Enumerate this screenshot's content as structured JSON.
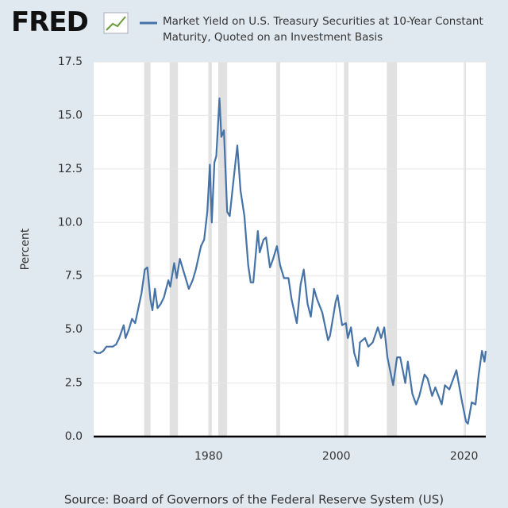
{
  "logo": "FRED",
  "chart_data": {
    "type": "line",
    "y_label": "Percent",
    "source": "Source: Board of Governors of the Federal Reserve System (US)",
    "xlim": [
      1962,
      2023.4
    ],
    "xticks": [
      1980,
      2000,
      2020
    ],
    "ylim": [
      0,
      17.5
    ],
    "yticks": [
      {
        "value": 0,
        "label": "0.0"
      },
      2.5,
      {
        "value": 5,
        "label": "5.0"
      },
      7.5,
      {
        "value": 10,
        "label": "10.0"
      },
      12.5,
      {
        "value": 15,
        "label": "15.0"
      },
      17.5
    ],
    "grid": true,
    "shaded_periods": [
      [
        1969.9,
        1970.9
      ],
      [
        1973.9,
        1975.2
      ],
      [
        1980.0,
        1980.5
      ],
      [
        1981.5,
        1982.9
      ],
      [
        1990.6,
        1991.2
      ],
      [
        2001.2,
        2001.9
      ],
      [
        2007.9,
        2009.5
      ],
      [
        2020.1,
        2020.3
      ]
    ],
    "x": [
      1962,
      1962.5,
      1963,
      1963.5,
      1964,
      1965,
      1965.5,
      1966,
      1966.7,
      1967,
      1967.5,
      1968,
      1968.5,
      1969,
      1969.5,
      1970,
      1970.4,
      1970.9,
      1971.2,
      1971.6,
      1972,
      1972.5,
      1973,
      1973.7,
      1974,
      1974.6,
      1975,
      1975.5,
      1976,
      1976.9,
      1977.5,
      1978,
      1978.8,
      1979.3,
      1979.8,
      1980.2,
      1980.5,
      1980.9,
      1981.2,
      1981.7,
      1982,
      1982.4,
      1982.9,
      1983.3,
      1983.8,
      1984.5,
      1985,
      1985.6,
      1986.2,
      1986.6,
      1987,
      1987.7,
      1988,
      1988.6,
      1989,
      1989.6,
      1990.1,
      1990.7,
      1991.2,
      1991.8,
      1992.5,
      1993,
      1993.8,
      1994.4,
      1994.9,
      1995.5,
      1996,
      1996.5,
      1997,
      1997.8,
      1998.7,
      1999,
      1999.9,
      2000.2,
      2000.9,
      2001.5,
      2001.8,
      2002.3,
      2002.8,
      2003.4,
      2003.7,
      2004.5,
      2005,
      2005.7,
      2006.5,
      2007,
      2007.5,
      2008,
      2008.9,
      2009.5,
      2010,
      2010.8,
      2011.2,
      2011.9,
      2012.5,
      2013,
      2013.8,
      2014.3,
      2015,
      2015.5,
      2016.5,
      2017,
      2017.7,
      2018.8,
      2019.7,
      2020.3,
      2020.6,
      2021.2,
      2021.8,
      2022.3,
      2022.8,
      2023.2,
      2023.4
    ],
    "series": [
      {
        "name": "Market Yield on U.S. Treasury Securities at 10-Year Constant Maturity, Quoted on an Investment Basis",
        "color": "#4572a7",
        "values": [
          4.0,
          3.9,
          3.9,
          4.0,
          4.2,
          4.2,
          4.3,
          4.6,
          5.2,
          4.6,
          5.0,
          5.5,
          5.3,
          6.0,
          6.7,
          7.8,
          7.9,
          6.4,
          5.9,
          6.9,
          6.0,
          6.2,
          6.5,
          7.3,
          7.0,
          8.1,
          7.4,
          8.3,
          7.8,
          6.9,
          7.3,
          7.8,
          8.9,
          9.2,
          10.5,
          12.7,
          10.0,
          12.8,
          13.1,
          15.8,
          14.0,
          14.3,
          10.5,
          10.3,
          11.7,
          13.6,
          11.5,
          10.3,
          8.0,
          7.2,
          7.2,
          9.6,
          8.6,
          9.2,
          9.3,
          7.9,
          8.3,
          8.9,
          8.0,
          7.4,
          7.4,
          6.4,
          5.3,
          7.1,
          7.8,
          6.2,
          5.6,
          6.9,
          6.4,
          5.8,
          4.5,
          4.7,
          6.3,
          6.6,
          5.2,
          5.3,
          4.6,
          5.1,
          3.9,
          3.3,
          4.4,
          4.6,
          4.2,
          4.4,
          5.1,
          4.6,
          5.1,
          3.7,
          2.4,
          3.7,
          3.7,
          2.5,
          3.5,
          2.0,
          1.5,
          1.9,
          2.9,
          2.7,
          1.9,
          2.3,
          1.5,
          2.4,
          2.2,
          3.1,
          1.6,
          0.7,
          0.6,
          1.6,
          1.5,
          2.9,
          4.0,
          3.5,
          4.0
        ]
      }
    ]
  }
}
